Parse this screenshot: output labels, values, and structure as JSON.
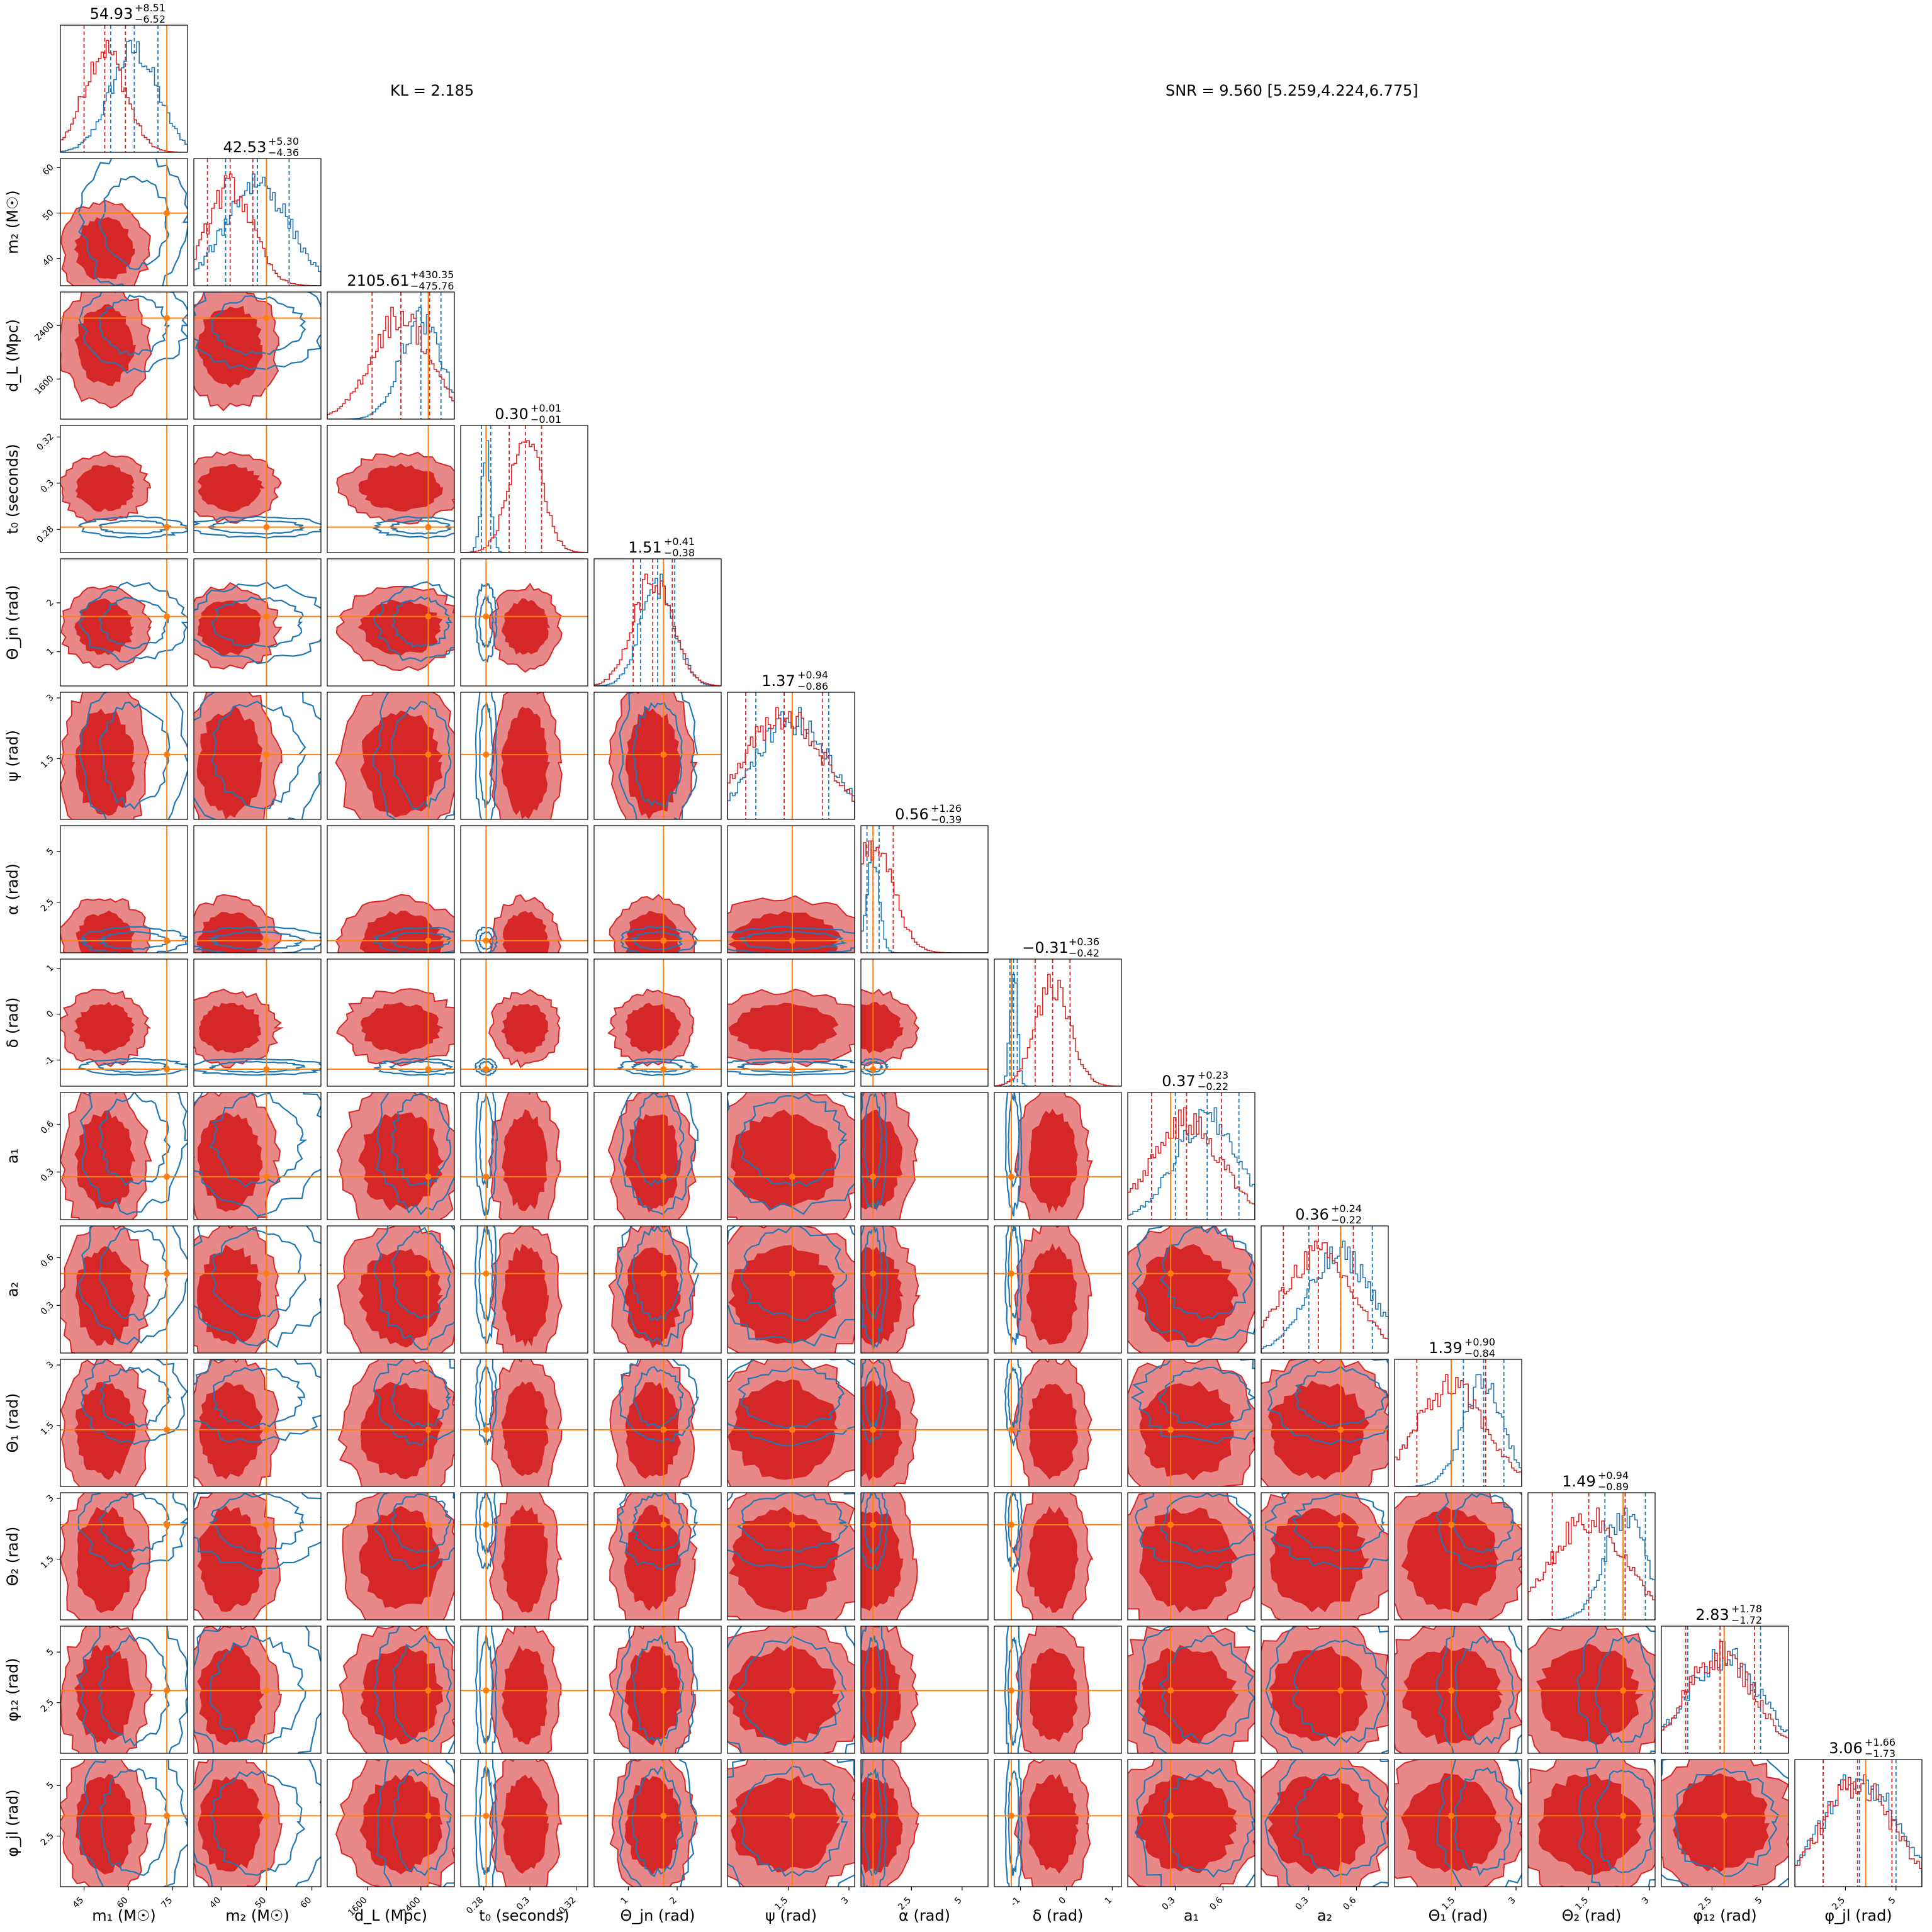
{
  "chart_data": {
    "type": "corner",
    "annotations": {
      "kl": "KL = 2.185",
      "snr": "SNR = 9.560 [5.259,4.224,6.775]"
    },
    "colors": {
      "model": "#d62728",
      "reference": "#1f77b4",
      "truth": "#ff7f0e"
    },
    "params": [
      {
        "label": "m₁ (M☉)",
        "range": [
          37,
          80
        ],
        "ticks": [
          45,
          60,
          75
        ],
        "truth": 73,
        "stat": {
          "median": "54.93",
          "plus": "+8.51",
          "minus": "−6.52"
        },
        "model": {
          "mean": 52,
          "sd": 7
        },
        "reference": {
          "mean": 62,
          "sd": 8
        }
      },
      {
        "label": "m₂ (M☉)",
        "range": [
          34,
          62
        ],
        "ticks": [
          40,
          50,
          60
        ],
        "truth": 50,
        "stat": {
          "median": "42.53",
          "plus": "+5.30",
          "minus": "−4.36"
        },
        "model": {
          "mean": 42,
          "sd": 5
        },
        "reference": {
          "mean": 48,
          "sd": 7
        }
      },
      {
        "label": "d_L (Mpc)",
        "range": [
          1000,
          2900
        ],
        "ticks": [
          1600,
          2400
        ],
        "truth": 2510,
        "stat": {
          "median": "2105.61",
          "plus": "+430.35",
          "minus": "−475.76"
        },
        "model": {
          "mean": 2100,
          "sd": 430
        },
        "reference": {
          "mean": 2400,
          "sd": 300
        }
      },
      {
        "label": "t₀ (seconds)",
        "range": [
          0.27,
          0.325
        ],
        "ticks": [
          0.28,
          0.3,
          0.32
        ],
        "truth": 0.281,
        "stat": {
          "median": "0.30",
          "plus": "+0.01",
          "minus": "−0.01"
        },
        "model": {
          "mean": 0.298,
          "sd": 0.007
        },
        "reference": {
          "mean": 0.281,
          "sd": 0.002
        }
      },
      {
        "label": "Θ_jn (rad)",
        "range": [
          0.3,
          2.9
        ],
        "ticks": [
          1,
          2
        ],
        "truth": 1.72,
        "stat": {
          "median": "1.51",
          "plus": "+0.41",
          "minus": "−0.38"
        },
        "model": {
          "mean": 1.5,
          "sd": 0.4
        },
        "reference": {
          "mean": 1.6,
          "sd": 0.35
        }
      },
      {
        "label": "ψ (rad)",
        "range": [
          0,
          3.14
        ],
        "ticks": [
          1.5,
          3.0
        ],
        "truth": 1.6,
        "stat": {
          "median": "1.37",
          "plus": "+0.94",
          "minus": "−0.86"
        },
        "model": {
          "mean": 1.4,
          "sd": 0.95
        },
        "reference": {
          "mean": 1.6,
          "sd": 0.9
        }
      },
      {
        "label": "α (rad)",
        "range": [
          0,
          6.28
        ],
        "ticks": [
          2.5,
          5.0
        ],
        "truth": 0.6,
        "stat": {
          "median": "0.56",
          "plus": "+1.26",
          "minus": "−0.39"
        },
        "model": {
          "mean": 0.6,
          "sd": 1.0
        },
        "reference": {
          "mean": 0.6,
          "sd": 0.3
        }
      },
      {
        "label": "δ (rad)",
        "range": [
          -1.57,
          1.2
        ],
        "ticks": [
          -1,
          0,
          1
        ],
        "truth": -1.2,
        "stat": {
          "median": "−0.31",
          "plus": "+0.36",
          "minus": "−0.42"
        },
        "model": {
          "mean": -0.3,
          "sd": 0.38
        },
        "reference": {
          "mean": -1.15,
          "sd": 0.08
        }
      },
      {
        "label": "a₁",
        "range": [
          0,
          0.8
        ],
        "ticks": [
          0.3,
          0.6
        ],
        "truth": 0.27,
        "stat": {
          "median": "0.37",
          "plus": "+0.23",
          "minus": "−0.22"
        },
        "model": {
          "mean": 0.37,
          "sd": 0.22
        },
        "reference": {
          "mean": 0.5,
          "sd": 0.2
        }
      },
      {
        "label": "a₂",
        "range": [
          0,
          0.8
        ],
        "ticks": [
          0.3,
          0.6
        ],
        "truth": 0.5,
        "stat": {
          "median": "0.36",
          "plus": "+0.24",
          "minus": "−0.22"
        },
        "model": {
          "mean": 0.36,
          "sd": 0.22
        },
        "reference": {
          "mean": 0.5,
          "sd": 0.2
        }
      },
      {
        "label": "Θ₁ (rad)",
        "range": [
          0,
          3.14
        ],
        "ticks": [
          1.5,
          3.0
        ],
        "truth": 1.4,
        "stat": {
          "median": "1.39",
          "plus": "+0.90",
          "minus": "−0.84"
        },
        "model": {
          "mean": 1.4,
          "sd": 0.85
        },
        "reference": {
          "mean": 2.2,
          "sd": 0.5
        }
      },
      {
        "label": "Θ₂ (rad)",
        "range": [
          0,
          3.14
        ],
        "ticks": [
          1.5,
          3.0
        ],
        "truth": 2.35,
        "stat": {
          "median": "1.49",
          "plus": "+0.94",
          "minus": "−0.89"
        },
        "model": {
          "mean": 1.5,
          "sd": 0.9
        },
        "reference": {
          "mean": 2.4,
          "sd": 0.5
        }
      },
      {
        "label": "φ₁₂ (rad)",
        "range": [
          0,
          6.28
        ],
        "ticks": [
          2.5,
          5.0
        ],
        "truth": 3.1,
        "stat": {
          "median": "2.83",
          "plus": "+1.78",
          "minus": "−1.72"
        },
        "model": {
          "mean": 2.9,
          "sd": 1.7
        },
        "reference": {
          "mean": 3.1,
          "sd": 1.8
        }
      },
      {
        "label": "φ_jl (rad)",
        "range": [
          0,
          6.28
        ],
        "ticks": [
          2.5,
          5.0
        ],
        "truth": 3.5,
        "stat": {
          "median": "3.06",
          "plus": "+1.66",
          "minus": "−1.73"
        },
        "model": {
          "mean": 3.1,
          "sd": 1.7
        },
        "reference": {
          "mean": 3.2,
          "sd": 1.8
        }
      }
    ]
  }
}
